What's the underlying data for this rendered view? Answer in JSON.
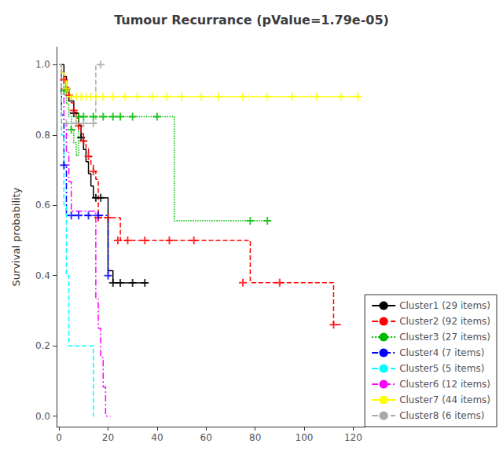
{
  "chart_data": {
    "type": "step",
    "title": "Tumour Recurrance (pValue=1.79e-05)",
    "ylabel": "Survival probability",
    "xlim": [
      -1,
      125
    ],
    "ylim": [
      -0.03,
      1.05
    ],
    "xticks": [
      0,
      20,
      40,
      60,
      80,
      100,
      120
    ],
    "yticks": [
      {
        "value": 0,
        "label": "0.0"
      },
      0.2,
      0.4,
      0.6,
      0.8,
      {
        "value": 1,
        "label": "1.0"
      }
    ],
    "grid": false,
    "legend": "lower right",
    "marker": "plus",
    "series": [
      {
        "name": "Cluster1 (29 items)",
        "color": "#000000",
        "line_style": "solid",
        "x": [
          0,
          1,
          2,
          3,
          4,
          5,
          6,
          7,
          8,
          9,
          10,
          11,
          12,
          13,
          14,
          15,
          16,
          17,
          18,
          19,
          20,
          21,
          22,
          25,
          30,
          35,
          36
        ],
        "values": [
          1.0,
          1.0,
          0.966,
          0.931,
          0.897,
          0.897,
          0.862,
          0.862,
          0.828,
          0.793,
          0.759,
          0.724,
          0.69,
          0.655,
          0.621,
          0.621,
          0.621,
          0.621,
          0.621,
          0.621,
          0.414,
          0.414,
          0.379,
          0.379,
          0.379,
          0.379,
          0.379
        ],
        "censors_x": [
          3,
          6,
          9,
          15,
          17,
          22,
          25,
          30,
          35
        ],
        "censors_y": [
          0.931,
          0.862,
          0.793,
          0.621,
          0.621,
          0.379,
          0.379,
          0.379,
          0.379
        ]
      },
      {
        "name": "Cluster2 (92 items)",
        "color": "#FF0000",
        "line_style": "dashed",
        "x": [
          0,
          1,
          2,
          3,
          4,
          5,
          6,
          7,
          8,
          9,
          10,
          11,
          12,
          13,
          14,
          15,
          16,
          17,
          18,
          19,
          20,
          21,
          22,
          23,
          24,
          25,
          30,
          35,
          40,
          45,
          50,
          55,
          60,
          65,
          70,
          75,
          78,
          80,
          90,
          100,
          110,
          112,
          115
        ],
        "values": [
          1.0,
          0.978,
          0.957,
          0.935,
          0.913,
          0.891,
          0.87,
          0.848,
          0.826,
          0.804,
          0.783,
          0.761,
          0.739,
          0.717,
          0.696,
          0.674,
          0.565,
          0.565,
          0.565,
          0.565,
          0.565,
          0.565,
          0.565,
          0.565,
          0.565,
          0.5,
          0.5,
          0.5,
          0.5,
          0.5,
          0.5,
          0.5,
          0.5,
          0.5,
          0.5,
          0.5,
          0.38,
          0.38,
          0.38,
          0.38,
          0.38,
          0.26,
          0.26
        ],
        "censors_x": [
          2,
          4,
          6,
          8,
          10,
          12,
          14,
          16,
          20,
          24,
          28,
          35,
          45,
          55,
          75,
          90,
          112
        ],
        "censors_y": [
          0.957,
          0.913,
          0.87,
          0.826,
          0.783,
          0.739,
          0.696,
          0.565,
          0.565,
          0.5,
          0.5,
          0.5,
          0.5,
          0.5,
          0.38,
          0.38,
          0.26
        ]
      },
      {
        "name": "Cluster3 (27 items)",
        "color": "#00BB00",
        "line_style": "dotted",
        "x": [
          0,
          1,
          2,
          3,
          4,
          5,
          6,
          7,
          8,
          9,
          10,
          11,
          12,
          13,
          14,
          15,
          16,
          17,
          18,
          19,
          20,
          25,
          30,
          40,
          47,
          48,
          50,
          60,
          70,
          78,
          80,
          86
        ],
        "values": [
          1.0,
          0.963,
          0.926,
          0.889,
          0.852,
          0.815,
          0.778,
          0.741,
          0.852,
          0.852,
          0.852,
          0.852,
          0.852,
          0.852,
          0.852,
          0.852,
          0.852,
          0.852,
          0.852,
          0.852,
          0.852,
          0.852,
          0.852,
          0.852,
          0.556,
          0.556,
          0.556,
          0.556,
          0.556,
          0.556,
          0.556,
          0.556
        ],
        "censors_x": [
          2,
          5,
          8,
          10,
          14,
          18,
          22,
          25,
          30,
          40,
          78,
          85
        ],
        "censors_y": [
          0.926,
          0.815,
          0.852,
          0.852,
          0.852,
          0.852,
          0.852,
          0.852,
          0.852,
          0.852,
          0.556,
          0.556
        ]
      },
      {
        "name": "Cluster4 (7 items)",
        "color": "#0000FF",
        "line_style": "dashdot",
        "x": [
          0,
          1,
          2,
          3,
          4,
          5,
          6,
          7,
          8,
          9,
          10,
          11,
          12,
          13,
          14,
          15,
          16,
          17,
          18,
          19,
          20,
          21
        ],
        "values": [
          1.0,
          0.857,
          0.714,
          0.571,
          0.571,
          0.571,
          0.571,
          0.571,
          0.571,
          0.571,
          0.571,
          0.571,
          0.571,
          0.571,
          0.571,
          0.571,
          0.571,
          0.571,
          0.571,
          0.571,
          0.4,
          0.4
        ],
        "censors_x": [
          2,
          5,
          8,
          12,
          16,
          20
        ],
        "censors_y": [
          0.714,
          0.571,
          0.571,
          0.571,
          0.571,
          0.4
        ]
      },
      {
        "name": "Cluster5 (5 items)",
        "color": "#00FFFF",
        "line_style": "dashed",
        "x": [
          0,
          1,
          2,
          3,
          4,
          5,
          6,
          7,
          8,
          9,
          10,
          11,
          12,
          13,
          14,
          14.5
        ],
        "values": [
          1.0,
          0.8,
          0.6,
          0.4,
          0.2,
          0.2,
          0.2,
          0.2,
          0.2,
          0.2,
          0.2,
          0.2,
          0.2,
          0.2,
          0.0,
          0.0
        ],
        "censors_x": [],
        "censors_y": []
      },
      {
        "name": "Cluster6 (12 items)",
        "color": "#FF00FF",
        "line_style": "dashdot",
        "x": [
          0,
          1,
          2,
          3,
          4,
          5,
          6,
          7,
          8,
          9,
          10,
          11,
          12,
          13,
          14,
          15,
          16,
          17,
          18,
          19,
          20,
          21
        ],
        "values": [
          1.0,
          0.917,
          0.833,
          0.75,
          0.667,
          0.583,
          0.583,
          0.583,
          0.583,
          0.583,
          0.583,
          0.583,
          0.583,
          0.583,
          0.583,
          0.333,
          0.25,
          0.167,
          0.083,
          0.0,
          0.0,
          0.0
        ],
        "censors_x": [],
        "censors_y": []
      },
      {
        "name": "Cluster7 (44 items)",
        "color": "#FFFF00",
        "line_style": "solid",
        "x": [
          0,
          1,
          2,
          3,
          4,
          5,
          6,
          7,
          8,
          9,
          10,
          11,
          12,
          13,
          14,
          15,
          20,
          25,
          30,
          35,
          40,
          45,
          50,
          55,
          60,
          65,
          70,
          75,
          80,
          85,
          90,
          95,
          100,
          105,
          110,
          115,
          120,
          122,
          123
        ],
        "values": [
          1.0,
          0.977,
          0.955,
          0.932,
          0.909,
          0.909,
          0.909,
          0.909,
          0.909,
          0.909,
          0.909,
          0.909,
          0.909,
          0.909,
          0.909,
          0.909,
          0.909,
          0.909,
          0.909,
          0.909,
          0.909,
          0.909,
          0.909,
          0.909,
          0.909,
          0.909,
          0.909,
          0.909,
          0.909,
          0.909,
          0.909,
          0.909,
          0.909,
          0.909,
          0.909,
          0.909,
          0.909,
          0.909,
          0.909
        ],
        "censors_x": [
          3,
          5,
          7,
          9,
          11,
          13,
          15,
          18,
          22,
          27,
          32,
          38,
          44,
          50,
          58,
          65,
          75,
          85,
          95,
          105,
          115,
          122
        ],
        "censors_y": [
          0.932,
          0.909,
          0.909,
          0.909,
          0.909,
          0.909,
          0.909,
          0.909,
          0.909,
          0.909,
          0.909,
          0.909,
          0.909,
          0.909,
          0.909,
          0.909,
          0.909,
          0.909,
          0.909,
          0.909,
          0.909,
          0.909
        ]
      },
      {
        "name": "Cluster8 (6 items)",
        "color": "#AAAAAA",
        "line_style": "dashed",
        "x": [
          0,
          1,
          2,
          3,
          4,
          5,
          6,
          7,
          8,
          9,
          10,
          11,
          12,
          13,
          14,
          15,
          16,
          17
        ],
        "values": [
          1.0,
          0.833,
          0.833,
          0.833,
          0.833,
          0.833,
          0.833,
          0.833,
          0.833,
          0.833,
          0.833,
          0.833,
          0.833,
          0.833,
          0.833,
          1.0,
          1.0,
          1.0
        ],
        "censors_x": [
          3,
          7,
          10,
          14,
          17
        ],
        "censors_y": [
          0.833,
          0.833,
          0.833,
          0.833,
          1.0
        ]
      }
    ]
  }
}
